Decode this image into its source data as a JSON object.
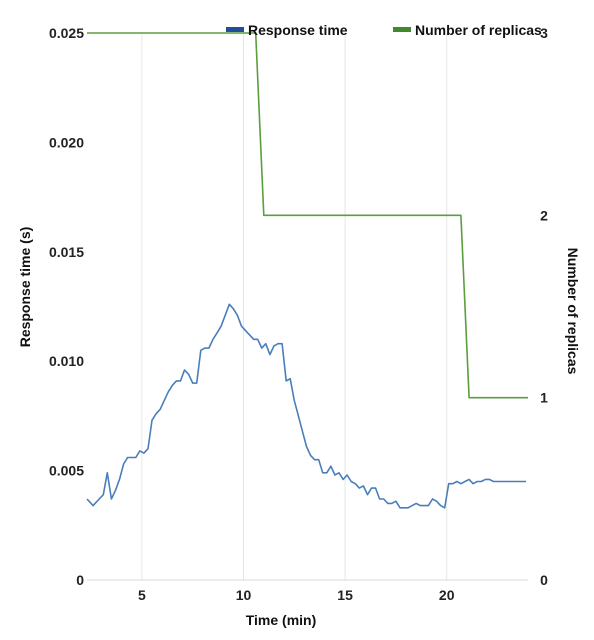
{
  "chart_data": {
    "type": "line",
    "title": "",
    "xlabel": "Time (min)",
    "ylabel_left": "Response time (s)",
    "ylabel_right": "Number of replicas",
    "xlim": [
      2.3,
      24.0
    ],
    "ylim_left": [
      0,
      0.025
    ],
    "ylim_right": [
      0,
      3
    ],
    "x_ticks": [
      "5",
      "10",
      "15",
      "20"
    ],
    "y_ticks_left": [
      "0",
      "0.005",
      "0.010",
      "0.015",
      "0.020",
      "0.025"
    ],
    "y_ticks_right": [
      "0",
      "1",
      "2",
      "3"
    ],
    "grid": "vertical",
    "legend_position": "top",
    "series": [
      {
        "name": "Response time",
        "axis": "left",
        "color": "#4a7ebb",
        "x": [
          2.3,
          2.6,
          2.9,
          3.1,
          3.3,
          3.5,
          3.7,
          3.9,
          4.1,
          4.3,
          4.5,
          4.7,
          4.9,
          5.1,
          5.3,
          5.5,
          5.7,
          5.9,
          6.1,
          6.3,
          6.5,
          6.7,
          6.9,
          7.1,
          7.3,
          7.5,
          7.7,
          7.9,
          8.1,
          8.3,
          8.5,
          8.7,
          8.9,
          9.1,
          9.3,
          9.5,
          9.7,
          9.9,
          10.1,
          10.3,
          10.5,
          10.7,
          10.9,
          11.1,
          11.3,
          11.5,
          11.7,
          11.9,
          12.1,
          12.3,
          12.5,
          12.7,
          12.9,
          13.1,
          13.3,
          13.5,
          13.7,
          13.9,
          14.1,
          14.3,
          14.5,
          14.7,
          14.9,
          15.1,
          15.3,
          15.5,
          15.7,
          15.9,
          16.1,
          16.3,
          16.5,
          16.7,
          16.9,
          17.1,
          17.3,
          17.5,
          17.7,
          17.9,
          18.1,
          18.3,
          18.5,
          18.7,
          18.9,
          19.1,
          19.3,
          19.5,
          19.7,
          19.9,
          20.1,
          20.3,
          20.5,
          20.7,
          20.9,
          21.1,
          21.3,
          21.5,
          21.7,
          21.9,
          22.1,
          22.3,
          22.5,
          22.7,
          22.9,
          23.1,
          23.3,
          23.5,
          23.7,
          23.9
        ],
        "values": [
          0.0037,
          0.0034,
          0.0037,
          0.0039,
          0.0049,
          0.0037,
          0.0041,
          0.0046,
          0.0053,
          0.0056,
          0.0056,
          0.0056,
          0.0059,
          0.0058,
          0.006,
          0.0073,
          0.0076,
          0.0078,
          0.0082,
          0.0086,
          0.0089,
          0.0091,
          0.0091,
          0.0096,
          0.0094,
          0.009,
          0.009,
          0.0105,
          0.0106,
          0.0106,
          0.011,
          0.0113,
          0.0116,
          0.0121,
          0.0126,
          0.0124,
          0.0121,
          0.0116,
          0.0114,
          0.0112,
          0.011,
          0.011,
          0.0106,
          0.0108,
          0.0103,
          0.0107,
          0.0108,
          0.0108,
          0.0091,
          0.0092,
          0.0082,
          0.0075,
          0.0068,
          0.0061,
          0.0057,
          0.0055,
          0.0055,
          0.0049,
          0.0049,
          0.0052,
          0.0048,
          0.0049,
          0.0046,
          0.0048,
          0.0045,
          0.0044,
          0.0042,
          0.0043,
          0.0039,
          0.0042,
          0.0042,
          0.0037,
          0.0037,
          0.0035,
          0.0035,
          0.0036,
          0.0033,
          0.0033,
          0.0033,
          0.0034,
          0.0035,
          0.0034,
          0.0034,
          0.0034,
          0.0037,
          0.0036,
          0.0034,
          0.0033,
          0.0044,
          0.0044,
          0.0045,
          0.0044,
          0.0045,
          0.0046,
          0.0044,
          0.0045,
          0.0045,
          0.0046,
          0.0046,
          0.0045,
          0.0045,
          0.0045,
          0.0045,
          0.0045,
          0.0045,
          0.0045,
          0.0045,
          0.0045
        ]
      },
      {
        "name": "Number of replicas",
        "axis": "right",
        "color": "#5b9e3c",
        "x": [
          2.3,
          10.6,
          11.0,
          20.7,
          21.1,
          24.0
        ],
        "values": [
          3,
          3,
          2,
          2,
          1,
          1
        ]
      }
    ]
  }
}
